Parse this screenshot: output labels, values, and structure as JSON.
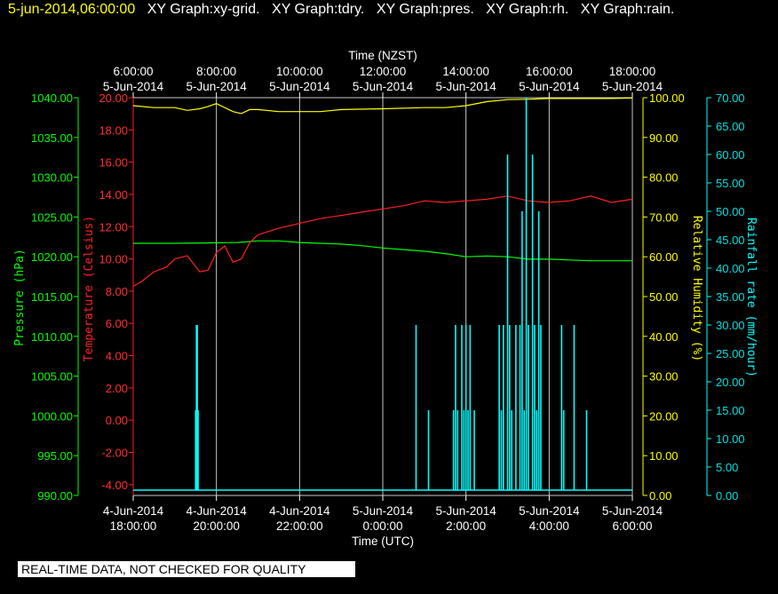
{
  "header": {
    "timestamp": "5-jun-2014,06:00:00",
    "graphs": [
      "XY Graph:xy-grid.",
      "XY Graph:tdry.",
      "XY Graph:pres.",
      "XY Graph:rh.",
      "XY Graph:rain."
    ]
  },
  "banner": "REAL-TIME DATA, NOT CHECKED FOR QUALITY",
  "colors": {
    "pressure": "#00ff00",
    "temperature": "#ff2020",
    "humidity": "#ffff00",
    "rain": "#00ffff",
    "grid": "#c8c8c8"
  },
  "chart_data": {
    "type": "line",
    "top_axis": {
      "title": "Time (NZST)",
      "ticks": [
        {
          "time": "6:00:00",
          "date": "5-Jun-2014"
        },
        {
          "time": "8:00:00",
          "date": "5-Jun-2014"
        },
        {
          "time": "10:00:00",
          "date": "5-Jun-2014"
        },
        {
          "time": "12:00:00",
          "date": "5-Jun-2014"
        },
        {
          "time": "14:00:00",
          "date": "5-Jun-2014"
        },
        {
          "time": "16:00:00",
          "date": "5-Jun-2014"
        },
        {
          "time": "18:00:00",
          "date": "5-Jun-2014"
        }
      ]
    },
    "bottom_axis": {
      "title": "Time (UTC)",
      "range_hours": [
        18,
        30
      ],
      "ticks": [
        {
          "date": "4-Jun-2014",
          "time": "18:00:00"
        },
        {
          "date": "4-Jun-2014",
          "time": "20:00:00"
        },
        {
          "date": "4-Jun-2014",
          "time": "22:00:00"
        },
        {
          "date": "5-Jun-2014",
          "time": "0:00:00"
        },
        {
          "date": "5-Jun-2014",
          "time": "2:00:00"
        },
        {
          "date": "5-Jun-2014",
          "time": "4:00:00"
        },
        {
          "date": "5-Jun-2014",
          "time": "6:00:00"
        }
      ]
    },
    "y_axes": {
      "pressure": {
        "title": "Pressure (hPa)",
        "range": [
          990,
          1040
        ],
        "ticks": [
          "1040.00",
          "1035.00",
          "1030.00",
          "1025.00",
          "1020.00",
          "1015.00",
          "1010.00",
          "1005.00",
          "1000.00",
          "995.00",
          "990.00"
        ]
      },
      "temperature": {
        "title": "Temperature (Celsius)",
        "range": [
          -4.67,
          20
        ],
        "ticks": [
          "20.00",
          "18.00",
          "16.00",
          "14.00",
          "12.00",
          "10.00",
          "8.00",
          "6.00",
          "4.00",
          "2.00",
          "0.00",
          "-2.00",
          "-4.00"
        ]
      },
      "humidity": {
        "title": "Relative Humidity (%)",
        "range": [
          0,
          100
        ],
        "ticks": [
          "100.00",
          "90.00",
          "80.00",
          "70.00",
          "60.00",
          "50.00",
          "40.00",
          "30.00",
          "20.00",
          "10.00",
          "0.00"
        ]
      },
      "rain": {
        "title": "Rainfall rate (mm/hour)",
        "range": [
          0,
          70
        ],
        "ticks": [
          "70.00",
          "65.00",
          "60.00",
          "55.00",
          "50.00",
          "45.00",
          "40.00",
          "35.00",
          "30.00",
          "25.00",
          "20.00",
          "15.00",
          "10.00",
          "5.00",
          "0.00"
        ]
      }
    },
    "series": [
      {
        "name": "pressure",
        "units": "hPa",
        "x": [
          18.0,
          19.0,
          20.0,
          20.5,
          21.0,
          21.5,
          22.0,
          22.5,
          23.0,
          23.5,
          24.0,
          24.5,
          25.0,
          25.5,
          26.0,
          26.5,
          27.0,
          27.5,
          28.0,
          28.5,
          29.0,
          29.5,
          30.0
        ],
        "y": [
          1021.7,
          1021.7,
          1021.75,
          1021.8,
          1022.0,
          1022.0,
          1021.8,
          1021.7,
          1021.6,
          1021.4,
          1021.1,
          1020.9,
          1020.7,
          1020.4,
          1020.0,
          1020.1,
          1020.0,
          1019.7,
          1019.7,
          1019.6,
          1019.5,
          1019.5,
          1019.5
        ]
      },
      {
        "name": "temperature",
        "units": "Celsius",
        "x": [
          18.0,
          18.2,
          18.5,
          18.8,
          19.0,
          19.3,
          19.6,
          19.8,
          20.0,
          20.2,
          20.4,
          20.6,
          20.8,
          21.0,
          21.5,
          22.0,
          22.5,
          23.0,
          23.5,
          24.0,
          24.5,
          25.0,
          25.5,
          26.0,
          26.5,
          27.0,
          27.5,
          28.0,
          28.5,
          29.0,
          29.5,
          30.0
        ],
        "y": [
          8.3,
          8.6,
          9.2,
          9.5,
          10.0,
          10.2,
          9.2,
          9.3,
          10.4,
          10.8,
          9.8,
          10.0,
          11.0,
          11.5,
          11.9,
          12.2,
          12.5,
          12.7,
          12.9,
          13.1,
          13.3,
          13.6,
          13.5,
          13.6,
          13.7,
          13.9,
          13.6,
          13.5,
          13.6,
          13.9,
          13.5,
          13.7
        ]
      },
      {
        "name": "humidity",
        "units": "%",
        "x": [
          18.0,
          18.5,
          19.0,
          19.3,
          19.6,
          19.8,
          20.0,
          20.4,
          20.6,
          20.8,
          21.0,
          21.5,
          22.0,
          22.5,
          23.0,
          24.0,
          25.0,
          25.5,
          26.0,
          26.5,
          27.0,
          27.5,
          28.0,
          28.5,
          29.0,
          29.5,
          30.0
        ],
        "y": [
          98.0,
          97.5,
          97.5,
          96.8,
          97.2,
          97.8,
          98.5,
          96.5,
          96.0,
          97.0,
          97.0,
          96.5,
          96.5,
          96.5,
          97.0,
          97.2,
          97.5,
          97.5,
          98.0,
          99.0,
          99.5,
          99.6,
          99.8,
          99.8,
          99.8,
          99.8,
          99.9
        ]
      },
      {
        "name": "rain",
        "units": "mm/hour",
        "x": [
          19.5,
          19.52,
          19.54,
          19.56,
          24.8,
          25.1,
          25.7,
          25.75,
          25.8,
          25.9,
          25.95,
          26.0,
          26.05,
          26.1,
          26.2,
          26.8,
          26.85,
          26.9,
          27.0,
          27.05,
          27.1,
          27.2,
          27.3,
          27.35,
          27.4,
          27.45,
          27.5,
          27.6,
          27.65,
          27.7,
          27.75,
          27.8,
          28.3,
          28.35,
          28.6,
          28.9
        ],
        "y": [
          15,
          30,
          30,
          15,
          30,
          15,
          15,
          30,
          15,
          30,
          15,
          30,
          15,
          30,
          15,
          30,
          15,
          30,
          60,
          30,
          15,
          30,
          30,
          50,
          15,
          70,
          30,
          60,
          30,
          15,
          50,
          30,
          30,
          15,
          30,
          15
        ]
      }
    ]
  }
}
